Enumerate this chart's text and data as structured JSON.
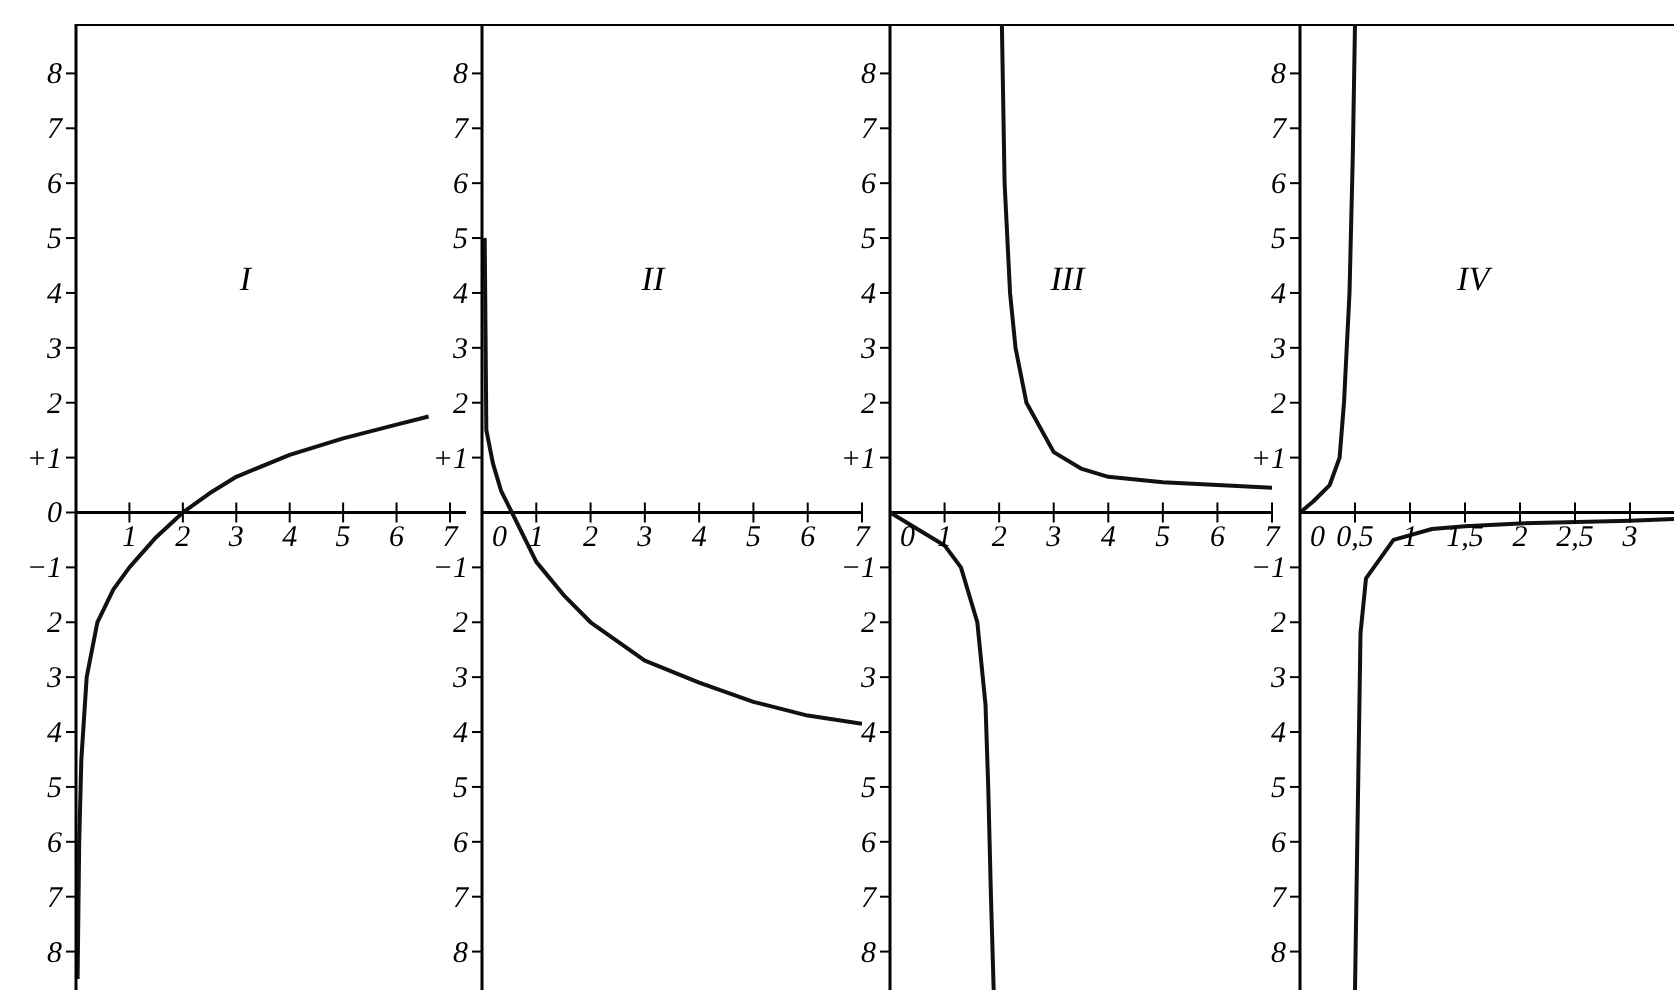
{
  "chart_data": [
    {
      "type": "line",
      "annotations": [
        "I"
      ],
      "marker": "none",
      "xlim": [
        0,
        7.3
      ],
      "xticks": [
        1,
        2,
        3,
        4,
        5,
        6,
        7
      ],
      "ylim": [
        -8.7,
        8.9
      ],
      "yticks": [
        {
          "value": 8,
          "label": "8"
        },
        {
          "value": 7,
          "label": "7"
        },
        {
          "value": 6,
          "label": "6"
        },
        {
          "value": 5,
          "label": "5"
        },
        {
          "value": 4,
          "label": "4"
        },
        {
          "value": 3,
          "label": "3"
        },
        {
          "value": 2,
          "label": "2"
        },
        {
          "value": 1,
          "label": "+1"
        },
        0,
        {
          "value": -1,
          "label": "−1"
        },
        {
          "value": -2,
          "label": "2"
        },
        {
          "value": -3,
          "label": "3"
        },
        {
          "value": -4,
          "label": "4"
        },
        {
          "value": -5,
          "label": "5"
        },
        {
          "value": -6,
          "label": "6"
        },
        {
          "value": -7,
          "label": "7"
        },
        {
          "value": -8,
          "label": "8"
        }
      ],
      "series": [
        {
          "color": "#111111",
          "x": [
            0.03,
            0.06,
            0.1,
            0.2,
            0.4,
            0.7,
            1,
            1.5,
            2,
            2.5,
            3,
            4,
            5,
            6,
            6.6
          ],
          "values": [
            -8.5,
            -6,
            -4.5,
            -3,
            -2,
            -1.4,
            -1,
            -0.45,
            0,
            0.35,
            0.65,
            1.05,
            1.35,
            1.6,
            1.75
          ]
        }
      ]
    },
    {
      "type": "line",
      "annotations": [
        "II"
      ],
      "marker": "none",
      "xlim": [
        0,
        7
      ],
      "xticks": [
        0,
        1,
        2,
        3,
        4,
        5,
        6,
        7
      ],
      "ylim": [
        -8.7,
        8.9
      ],
      "yticks": [
        {
          "value": 8,
          "label": "8"
        },
        {
          "value": 7,
          "label": "7"
        },
        {
          "value": 6,
          "label": "6"
        },
        {
          "value": 5,
          "label": "5"
        },
        {
          "value": 4,
          "label": "4"
        },
        {
          "value": 3,
          "label": "3"
        },
        {
          "value": 2,
          "label": "2"
        },
        {
          "value": 1,
          "label": "+1"
        },
        {
          "value": -1,
          "label": "−1"
        },
        {
          "value": -2,
          "label": "2"
        },
        {
          "value": -3,
          "label": "3"
        },
        {
          "value": -4,
          "label": "4"
        },
        {
          "value": -5,
          "label": "5"
        },
        {
          "value": -6,
          "label": "6"
        },
        {
          "value": -7,
          "label": "7"
        },
        {
          "value": -8,
          "label": "8"
        }
      ],
      "series": [
        {
          "color": "#111111",
          "x": [
            0.05,
            0.08,
            0.2,
            0.35,
            0.55,
            1,
            1.5,
            2,
            3,
            4,
            5,
            6,
            7
          ],
          "values": [
            5,
            1.5,
            0.9,
            0.4,
            0,
            -0.9,
            -1.5,
            -2,
            -2.7,
            -3.1,
            -3.45,
            -3.7,
            -3.85
          ]
        }
      ]
    },
    {
      "type": "line",
      "annotations": [
        "III"
      ],
      "marker": "none",
      "xlim": [
        0,
        7
      ],
      "xticks": [
        0,
        1,
        2,
        3,
        4,
        5,
        6,
        7
      ],
      "ylim": [
        -8.7,
        8.9
      ],
      "yticks": [
        {
          "value": 8,
          "label": "8"
        },
        {
          "value": 7,
          "label": "7"
        },
        {
          "value": 6,
          "label": "6"
        },
        {
          "value": 5,
          "label": "5"
        },
        {
          "value": 4,
          "label": "4"
        },
        {
          "value": 3,
          "label": "3"
        },
        {
          "value": 2,
          "label": "2"
        },
        {
          "value": 1,
          "label": "+1"
        },
        {
          "value": -1,
          "label": "−1"
        },
        {
          "value": -2,
          "label": "2"
        },
        {
          "value": -3,
          "label": "3"
        },
        {
          "value": -4,
          "label": "4"
        },
        {
          "value": -5,
          "label": "5"
        },
        {
          "value": -6,
          "label": "6"
        },
        {
          "value": -7,
          "label": "7"
        },
        {
          "value": -8,
          "label": "8"
        }
      ],
      "series": [
        {
          "color": "#111111",
          "x": [
            2.05,
            2.1,
            2.2,
            2.3,
            2.5,
            3,
            3.5,
            4,
            5,
            6,
            7
          ],
          "values": [
            8.9,
            6,
            4,
            3,
            2,
            1.1,
            0.8,
            0.65,
            0.55,
            0.5,
            0.45
          ]
        },
        {
          "color": "#111111",
          "x": [
            0,
            0.5,
            1,
            1.3,
            1.6,
            1.75,
            1.8,
            1.85,
            1.9
          ],
          "values": [
            0,
            -0.3,
            -0.6,
            -1,
            -2,
            -3.5,
            -5,
            -7,
            -8.7
          ]
        }
      ]
    },
    {
      "type": "line",
      "annotations": [
        "IV"
      ],
      "marker": "none",
      "xlim": [
        0,
        3.4
      ],
      "xticks": [
        0,
        {
          "value": 0.5,
          "label": "0,5"
        },
        1,
        {
          "value": 1.5,
          "label": "1,5"
        },
        2,
        {
          "value": 2.5,
          "label": "2,5"
        },
        3
      ],
      "ylim": [
        -8.7,
        8.9
      ],
      "yticks": [
        {
          "value": 8,
          "label": "8"
        },
        {
          "value": 7,
          "label": "7"
        },
        {
          "value": 6,
          "label": "6"
        },
        {
          "value": 5,
          "label": "5"
        },
        {
          "value": 4,
          "label": "4"
        },
        {
          "value": 3,
          "label": "3"
        },
        {
          "value": 2,
          "label": "2"
        },
        {
          "value": 1,
          "label": "+1"
        },
        {
          "value": -1,
          "label": "−1"
        },
        {
          "value": -2,
          "label": "2"
        },
        {
          "value": -3,
          "label": "3"
        },
        {
          "value": -4,
          "label": "4"
        },
        {
          "value": -5,
          "label": "5"
        },
        {
          "value": -6,
          "label": "6"
        },
        {
          "value": -7,
          "label": "7"
        },
        {
          "value": -8,
          "label": "8"
        }
      ],
      "series": [
        {
          "color": "#111111",
          "x": [
            0,
            0.12,
            0.27,
            0.36,
            0.4,
            0.45,
            0.48,
            0.5
          ],
          "values": [
            0,
            0.2,
            0.5,
            1,
            2,
            4,
            6.5,
            8.9
          ]
        },
        {
          "color": "#111111",
          "x": [
            0.5,
            0.55,
            0.6,
            0.85,
            1.2,
            1.5,
            2,
            3,
            3.4
          ],
          "values": [
            -8.7,
            -2.2,
            -1.2,
            -0.5,
            -0.3,
            -0.25,
            -0.2,
            -0.15,
            -0.12
          ]
        }
      ]
    }
  ]
}
